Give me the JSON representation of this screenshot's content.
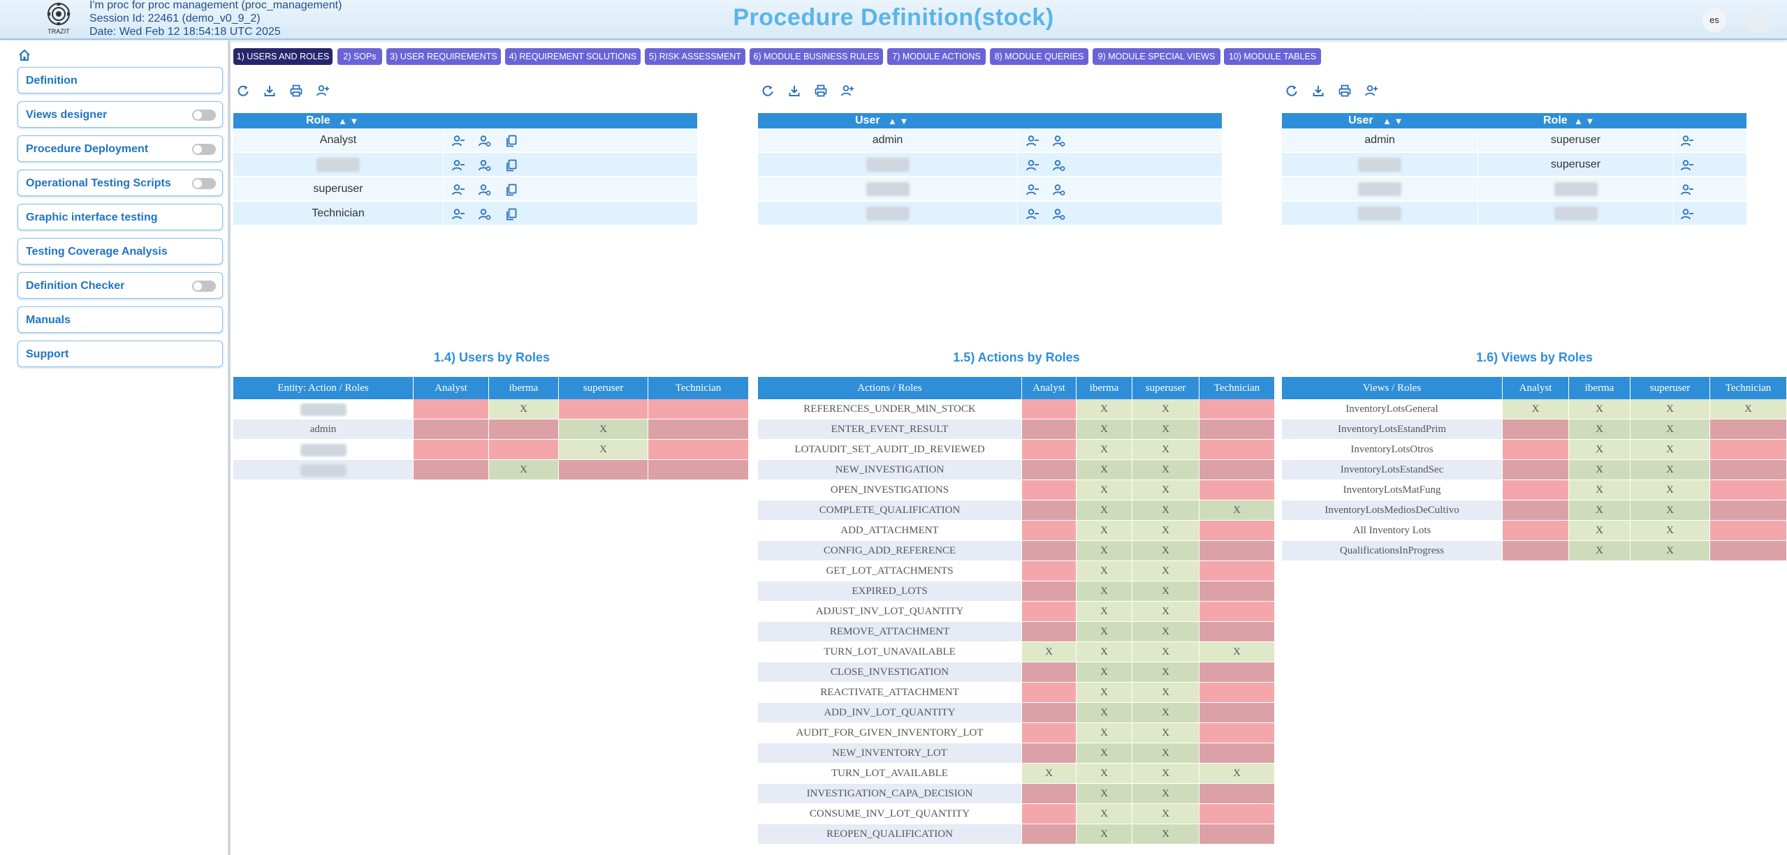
{
  "header": {
    "session_lines": [
      "I'm proc for proc management (proc_management)",
      "Session Id: 22461 (demo_v0_9_2)",
      "Date: Wed Feb 12 18:54:18 UTC 2025"
    ],
    "logo_text": "TRAZIT",
    "title": "Procedure Definition(stock)",
    "language": "es"
  },
  "sidebar": {
    "items": [
      {
        "label": "Definition",
        "toggle": false
      },
      {
        "label": "Views designer",
        "toggle": true
      },
      {
        "label": "Procedure Deployment",
        "toggle": true
      },
      {
        "label": "Operational Testing Scripts",
        "toggle": true
      },
      {
        "label": "Graphic interface testing",
        "toggle": false
      },
      {
        "label": "Testing Coverage Analysis",
        "toggle": false
      },
      {
        "label": "Definition Checker",
        "toggle": true
      },
      {
        "label": "Manuals",
        "toggle": false
      },
      {
        "label": "Support",
        "toggle": false
      }
    ]
  },
  "tabs": [
    {
      "label": "1) USERS AND ROLES",
      "active": true
    },
    {
      "label": "2) SOPs",
      "active": false
    },
    {
      "label": "3) USER REQUIREMENTS",
      "active": false
    },
    {
      "label": "4) REQUIREMENT SOLUTIONS",
      "active": false
    },
    {
      "label": "5) RISK ASSESSMENT",
      "active": false
    },
    {
      "label": "6) MODULE BUSINESS RULES",
      "active": false
    },
    {
      "label": "7) MODULE ACTIONS",
      "active": false
    },
    {
      "label": "8) MODULE QUERIES",
      "active": false
    },
    {
      "label": "9) MODULE SPECIAL VIEWS",
      "active": false
    },
    {
      "label": "10) MODULE TABLES",
      "active": false
    }
  ],
  "roles_table": {
    "header": "Role",
    "sort_arrows": "▲ ▼",
    "rows": [
      "Analyst",
      "",
      "superuser",
      "Technician"
    ]
  },
  "users_table": {
    "header": "User",
    "sort_arrows": "▲ ▼",
    "rows": [
      "admin",
      "",
      "",
      ""
    ]
  },
  "user_roles_table": {
    "header_user": "User",
    "header_role": "Role",
    "sort_arrows": "▲ ▼",
    "rows": [
      {
        "user": "admin",
        "role": "superuser"
      },
      {
        "user": "",
        "role": "superuser"
      },
      {
        "user": "",
        "role": ""
      },
      {
        "user": "",
        "role": ""
      }
    ]
  },
  "users_by_roles": {
    "title": "1.4) Users by Roles",
    "headers": [
      "Entity: Action / Roles",
      "Analyst",
      "iberma",
      "superuser",
      "Technician"
    ],
    "rows": [
      {
        "name": "",
        "cells": [
          "",
          "X",
          "",
          ""
        ]
      },
      {
        "name": "admin",
        "cells": [
          "",
          "",
          "X",
          ""
        ]
      },
      {
        "name": "",
        "cells": [
          "",
          "",
          "X",
          ""
        ]
      },
      {
        "name": "",
        "cells": [
          "",
          "X",
          "",
          ""
        ]
      }
    ]
  },
  "actions_by_roles": {
    "title": "1.5) Actions by Roles",
    "headers": [
      "Actions / Roles",
      "Analyst",
      "iberma",
      "superuser",
      "Technician"
    ],
    "rows": [
      {
        "name": "REFERENCES_UNDER_MIN_STOCK",
        "cells": [
          "",
          "X",
          "X",
          ""
        ]
      },
      {
        "name": "ENTER_EVENT_RESULT",
        "cells": [
          "",
          "X",
          "X",
          ""
        ]
      },
      {
        "name": "LOTAUDIT_SET_AUDIT_ID_REVIEWED",
        "cells": [
          "",
          "X",
          "X",
          ""
        ]
      },
      {
        "name": "NEW_INVESTIGATION",
        "cells": [
          "",
          "X",
          "X",
          ""
        ]
      },
      {
        "name": "OPEN_INVESTIGATIONS",
        "cells": [
          "",
          "X",
          "X",
          ""
        ]
      },
      {
        "name": "COMPLETE_QUALIFICATION",
        "cells": [
          "",
          "X",
          "X",
          "X"
        ]
      },
      {
        "name": "ADD_ATTACHMENT",
        "cells": [
          "",
          "X",
          "X",
          ""
        ]
      },
      {
        "name": "CONFIG_ADD_REFERENCE",
        "cells": [
          "",
          "X",
          "X",
          ""
        ]
      },
      {
        "name": "GET_LOT_ATTACHMENTS",
        "cells": [
          "",
          "X",
          "X",
          ""
        ]
      },
      {
        "name": "EXPIRED_LOTS",
        "cells": [
          "",
          "X",
          "X",
          ""
        ]
      },
      {
        "name": "ADJUST_INV_LOT_QUANTITY",
        "cells": [
          "",
          "X",
          "X",
          ""
        ]
      },
      {
        "name": "REMOVE_ATTACHMENT",
        "cells": [
          "",
          "X",
          "X",
          ""
        ]
      },
      {
        "name": "TURN_LOT_UNAVAILABLE",
        "cells": [
          "X",
          "X",
          "X",
          "X"
        ]
      },
      {
        "name": "CLOSE_INVESTIGATION",
        "cells": [
          "",
          "X",
          "X",
          ""
        ]
      },
      {
        "name": "REACTIVATE_ATTACHMENT",
        "cells": [
          "",
          "X",
          "X",
          ""
        ]
      },
      {
        "name": "ADD_INV_LOT_QUANTITY",
        "cells": [
          "",
          "X",
          "X",
          ""
        ]
      },
      {
        "name": "AUDIT_FOR_GIVEN_INVENTORY_LOT",
        "cells": [
          "",
          "X",
          "X",
          ""
        ]
      },
      {
        "name": "NEW_INVENTORY_LOT",
        "cells": [
          "",
          "X",
          "X",
          ""
        ]
      },
      {
        "name": "TURN_LOT_AVAILABLE",
        "cells": [
          "X",
          "X",
          "X",
          "X"
        ]
      },
      {
        "name": "INVESTIGATION_CAPA_DECISION",
        "cells": [
          "",
          "X",
          "X",
          ""
        ]
      },
      {
        "name": "CONSUME_INV_LOT_QUANTITY",
        "cells": [
          "",
          "X",
          "X",
          ""
        ]
      },
      {
        "name": "REOPEN_QUALIFICATION",
        "cells": [
          "",
          "X",
          "X",
          ""
        ]
      }
    ]
  },
  "views_by_roles": {
    "title": "1.6) Views by Roles",
    "headers": [
      "Views / Roles",
      "Analyst",
      "iberma",
      "superuser",
      "Technician"
    ],
    "rows": [
      {
        "name": "InventoryLotsGeneral",
        "cells": [
          "X",
          "X",
          "X",
          "X"
        ]
      },
      {
        "name": "InventoryLotsEstandPrim",
        "cells": [
          "",
          "X",
          "X",
          ""
        ]
      },
      {
        "name": "InventoryLotsOtros",
        "cells": [
          "",
          "X",
          "X",
          ""
        ]
      },
      {
        "name": "InventoryLotsEstandSec",
        "cells": [
          "",
          "X",
          "X",
          ""
        ]
      },
      {
        "name": "InventoryLotsMatFung",
        "cells": [
          "",
          "X",
          "X",
          ""
        ]
      },
      {
        "name": "InventoryLotsMediosDeCultivo",
        "cells": [
          "",
          "X",
          "X",
          ""
        ]
      },
      {
        "name": "All Inventory Lots",
        "cells": [
          "",
          "X",
          "X",
          ""
        ]
      },
      {
        "name": "QualificationsInProgress",
        "cells": [
          "",
          "X",
          "X",
          ""
        ]
      }
    ]
  },
  "colors": {
    "accent": "#2f8ed8",
    "tab": "#6a63d8",
    "tab_active": "#27266d",
    "granted": "#dfe8c8",
    "denied": "#f4a7ab"
  }
}
